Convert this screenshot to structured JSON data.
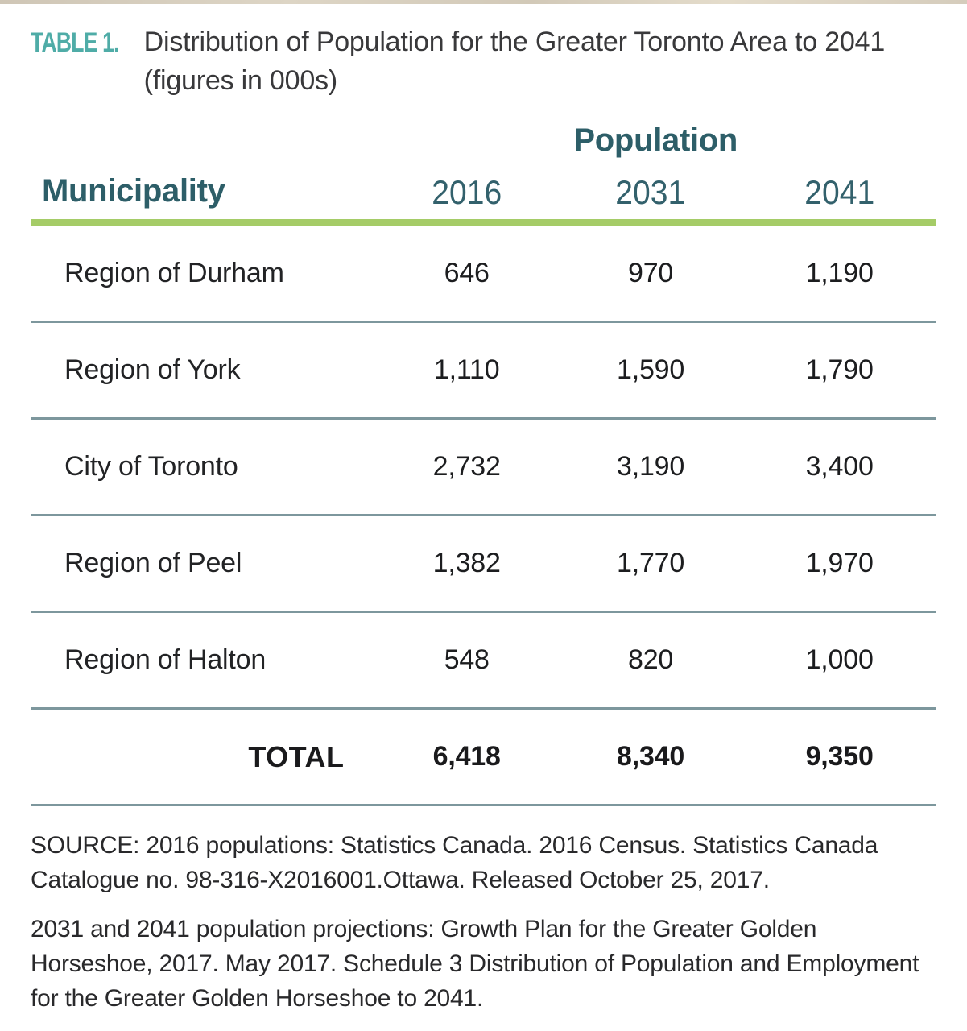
{
  "table_label": "TABLE 1.",
  "title": "Distribution of Population for the Greater Toronto Area to 2041 (figures in 000s)",
  "header": {
    "group_label": "Population",
    "row_header": "Municipality",
    "year_columns": [
      "2016",
      "2031",
      "2041"
    ]
  },
  "table": {
    "rows": [
      {
        "name": "Region of Durham",
        "values": [
          "646",
          "970",
          "1,190"
        ]
      },
      {
        "name": "Region of York",
        "values": [
          "1,110",
          "1,590",
          "1,790"
        ]
      },
      {
        "name": "City of Toronto",
        "values": [
          "2,732",
          "3,190",
          "3,400"
        ]
      },
      {
        "name": "Region of Peel",
        "values": [
          "1,382",
          "1,770",
          "1,970"
        ]
      },
      {
        "name": "Region of Halton",
        "values": [
          "548",
          "820",
          "1,000"
        ]
      }
    ],
    "total": {
      "name": "TOTAL",
      "values": [
        "6,418",
        "8,340",
        "9,350"
      ]
    }
  },
  "source": [
    "SOURCE: 2016 populations: Statistics Canada. 2016 Census. Statistics Canada Catalogue no. 98-316-X2016001.Ottawa. Released October 25, 2017.",
    "2031 and 2041 population projections: Growth Plan for the Greater Golden Horseshoe, 2017. May 2017. Schedule 3 Distribution of Population and Employment for the Greater Golden Horseshoe to 2041."
  ],
  "colors": {
    "label_teal": "#4FACA7",
    "header_teal": "#2D5E68",
    "rule_green": "#A5CC67",
    "row_divider": "#7D979D",
    "top_strip_tan": "#D5CCBC",
    "body_text": "#222325"
  }
}
